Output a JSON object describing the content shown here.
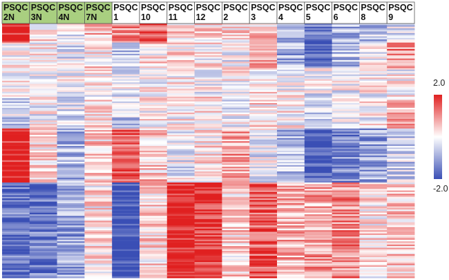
{
  "chart_data": {
    "type": "heatmap",
    "title": "",
    "columns": [
      {
        "line1": "PSQC",
        "line2": "2N",
        "group": "normal"
      },
      {
        "line1": "PSQC",
        "line2": "3N",
        "group": "normal"
      },
      {
        "line1": "PSQC",
        "line2": "4N",
        "group": "normal"
      },
      {
        "line1": "PSQC",
        "line2": "7N",
        "group": "normal"
      },
      {
        "line1": "PSQC",
        "line2": "1",
        "group": "tumor"
      },
      {
        "line1": "PSQC",
        "line2": "10",
        "group": "tumor"
      },
      {
        "line1": "PSQC",
        "line2": "11",
        "group": "tumor"
      },
      {
        "line1": "PSQC",
        "line2": "12",
        "group": "tumor"
      },
      {
        "line1": "PSQC",
        "line2": "2",
        "group": "tumor"
      },
      {
        "line1": "PSQC",
        "line2": "3",
        "group": "tumor"
      },
      {
        "line1": "PSQC",
        "line2": "4",
        "group": "tumor"
      },
      {
        "line1": "PSQC",
        "line2": "5",
        "group": "tumor"
      },
      {
        "line1": "PSQC",
        "line2": "6",
        "group": "tumor"
      },
      {
        "line1": "PSQC",
        "line2": "8",
        "group": "tumor"
      },
      {
        "line1": "PSQC",
        "line2": "9",
        "group": "tumor"
      }
    ],
    "row_count": 160,
    "value_range": [
      -2.0,
      2.0
    ],
    "color_scale": {
      "low": "#3a4fb5",
      "mid": "#ffffff",
      "high": "#e02020"
    },
    "group_colors": {
      "normal": "#a9cf80",
      "tumor": "#ffffff"
    },
    "legend": {
      "max_label": "2.0",
      "min_label": "-2.0",
      "position": "right"
    },
    "blocks": [
      {
        "rows": [
          0,
          12
        ],
        "means": [
          1.8,
          0.2,
          -0.3,
          0.6,
          1.0,
          1.5,
          0.4,
          0.3,
          0.3,
          0.4,
          -0.8,
          -1.5,
          -0.8,
          -0.6,
          -0.3
        ]
      },
      {
        "rows": [
          12,
          28
        ],
        "means": [
          0.0,
          0.0,
          -0.3,
          0.3,
          -0.7,
          0.2,
          0.3,
          0.1,
          -0.2,
          0.7,
          -0.9,
          -1.4,
          -0.7,
          -0.1,
          1.0
        ]
      },
      {
        "rows": [
          28,
          46
        ],
        "means": [
          -0.1,
          0.0,
          0.0,
          0.1,
          -0.2,
          0.0,
          0.1,
          0.0,
          0.0,
          0.2,
          0.0,
          -0.2,
          -0.1,
          0.0,
          0.0
        ]
      },
      {
        "rows": [
          46,
          66
        ],
        "means": [
          -0.4,
          -0.1,
          -0.3,
          0.3,
          -0.5,
          0.1,
          0.1,
          0.2,
          -0.2,
          0.2,
          0.1,
          -0.6,
          -0.2,
          0.0,
          0.6
        ]
      },
      {
        "rows": [
          66,
          100
        ],
        "means": [
          2.0,
          0.3,
          -0.8,
          0.4,
          1.5,
          0.5,
          -0.2,
          0.2,
          0.8,
          -0.2,
          -0.7,
          -1.9,
          -1.2,
          -1.0,
          -0.5
        ]
      },
      {
        "rows": [
          100,
          160
        ],
        "means": [
          -1.6,
          -1.5,
          -1.0,
          0.2,
          -2.0,
          0.3,
          2.0,
          1.9,
          0.4,
          1.5,
          0.7,
          0.8,
          1.0,
          0.2,
          0.4
        ]
      }
    ]
  }
}
